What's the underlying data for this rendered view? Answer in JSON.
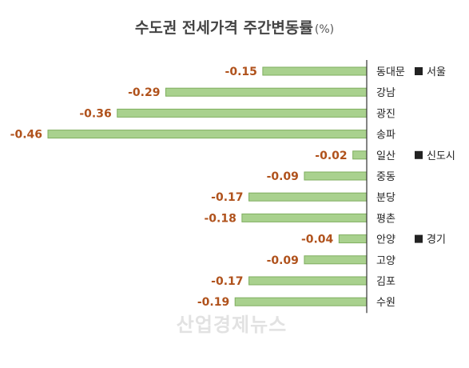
{
  "title": "수도권 전세가격 주간변동률",
  "title_unit": "(%)",
  "watermark": "산업경제뉴스",
  "colors": {
    "bar": "#a9d18e",
    "bar_stroke": "#7fae5f",
    "value_label": "#b0521c",
    "axis": "#333333"
  },
  "chart_data": {
    "type": "bar",
    "orientation": "horizontal",
    "title": "수도권 전세가격 주간변동률",
    "unit": "%",
    "categories": [
      "동대문",
      "강남",
      "광진",
      "송파",
      "일산",
      "중동",
      "분당",
      "평촌",
      "안양",
      "고양",
      "김포",
      "수원"
    ],
    "values": [
      -0.15,
      -0.29,
      -0.36,
      -0.46,
      -0.02,
      -0.09,
      -0.17,
      -0.18,
      -0.04,
      -0.09,
      -0.17,
      -0.19
    ],
    "value_labels": [
      "-0.15",
      "-0.29",
      "-0.36",
      "-0.46",
      "-0.02",
      "-0.09",
      "-0.17",
      "-0.18",
      "-0.04",
      "-0.09",
      "-0.17",
      "-0.19"
    ],
    "groups": [
      {
        "name": "서울",
        "start": 0
      },
      {
        "name": "신도시",
        "start": 4
      },
      {
        "name": "경기",
        "start": 8
      }
    ],
    "xlim": [
      -0.46,
      0
    ],
    "grid": false,
    "legend": "none"
  }
}
